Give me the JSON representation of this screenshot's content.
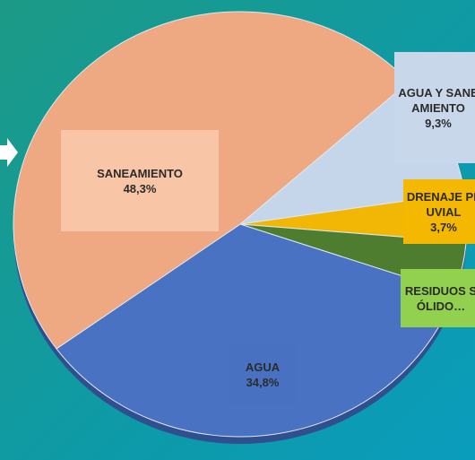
{
  "chart_data": {
    "type": "pie",
    "categories": [
      "AGUA Y SANEAMIENTO",
      "DRENAJE PLUVIAL",
      "RESIDUOS SÓLIDO…",
      "AGUA",
      "SANEAMIENTO"
    ],
    "values": [
      9.3,
      3.7,
      3.9,
      34.8,
      48.3
    ],
    "value_labels": [
      "9,3%",
      "3,7%",
      null,
      "34,8%",
      "48,3%"
    ],
    "colors": [
      "#c6d6ea",
      "#f2b705",
      "#4f7d2f",
      "#4a72c2",
      "#eea882"
    ]
  }
}
